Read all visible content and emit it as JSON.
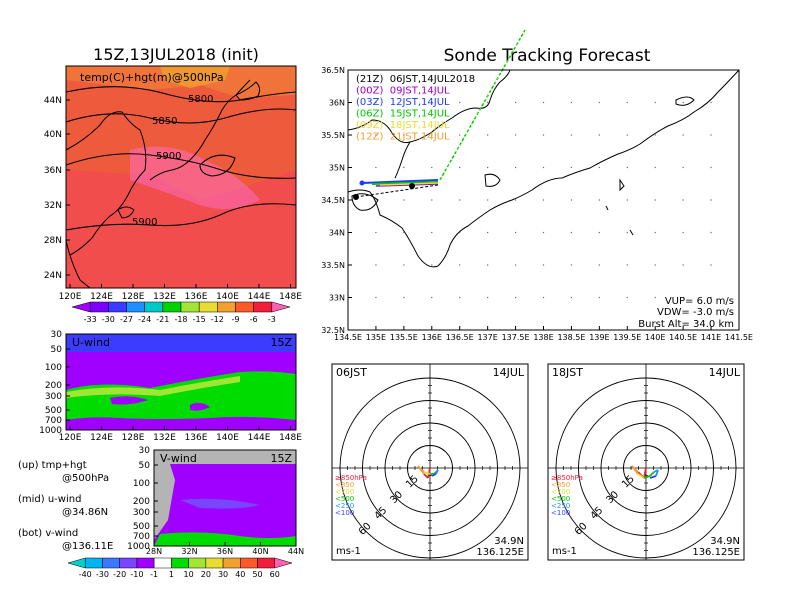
{
  "main_map": {
    "title": "15Z,13JUL2018 (init)",
    "subtitle": "temp(C)+hgt(m)@500hPa",
    "contour_labels": [
      "5800",
      "5850",
      "5900",
      "5900"
    ],
    "lat_ticks": [
      "44N",
      "40N",
      "36N",
      "32N",
      "28N",
      "24N"
    ],
    "lon_ticks": [
      "120E",
      "124E",
      "128E",
      "132E",
      "136E",
      "140E",
      "144E",
      "148E"
    ],
    "colorbar_ticks": [
      "-33",
      "-30",
      "-27",
      "-24",
      "-21",
      "-18",
      "-15",
      "-12",
      "-9",
      "-6",
      "-3"
    ],
    "colorbar_colors": [
      "#9f00ff",
      "#7d00ff",
      "#3b3bff",
      "#1e90ff",
      "#00c8c8",
      "#00d200",
      "#a0e632",
      "#e6dc32",
      "#f0a030",
      "#fa5a2a",
      "#f01e3c",
      "#ff5fb4"
    ]
  },
  "uwind": {
    "label": "U-wind",
    "time": "15Z",
    "p_ticks": [
      "30",
      "50",
      "100",
      "200",
      "300",
      "500",
      "700",
      "1000"
    ],
    "lon_ticks": [
      "120E",
      "124E",
      "128E",
      "132E",
      "136E",
      "140E",
      "144E",
      "148E"
    ]
  },
  "vwind": {
    "label": "V-wind",
    "time": "15Z",
    "p_ticks": [
      "30",
      "50",
      "100",
      "200",
      "300",
      "500",
      "700",
      "1000"
    ],
    "lat_ticks": [
      "28N",
      "32N",
      "36N",
      "40N",
      "44N"
    ]
  },
  "notes": {
    "up_1": "(up) tmp+hgt",
    "up_2": "@500hPa",
    "mid_1": "(mid) u-wind",
    "mid_2": "@34.86N",
    "bot_1": "(bot) v-wind",
    "bot_2": "@136.11E"
  },
  "wind_colorbar": {
    "ticks": [
      "-40",
      "-30",
      "-20",
      "-10",
      "-1",
      "1",
      "10",
      "20",
      "30",
      "40",
      "50",
      "60"
    ],
    "colors": [
      "#00d2c8",
      "#00b4f0",
      "#3c78ff",
      "#7846ff",
      "#a000ff",
      "#ffffff",
      "#00dc00",
      "#a0e632",
      "#e6dc32",
      "#f0a030",
      "#fa5a2a",
      "#f01e3c",
      "#ff5fb4"
    ]
  },
  "tracking": {
    "title": "Sonde Tracking Forecast",
    "lat_ticks": [
      "36.5N",
      "36N",
      "35.5N",
      "35N",
      "34.5N",
      "34N",
      "33.5N",
      "33N",
      "32.5N"
    ],
    "lon_ticks": [
      "134.5E",
      "135E",
      "135.5E",
      "136E",
      "136.5E",
      "137E",
      "137.5E",
      "138E",
      "138.5E",
      "139E",
      "139.5E",
      "140E",
      "140.5E",
      "141E",
      "141.5E"
    ],
    "legend": [
      {
        "text": "(21Z)  06JST,14JUL2018",
        "color": "#000000"
      },
      {
        "text": "(00Z)  09JST,14JUL",
        "color": "#a000c8"
      },
      {
        "text": "(03Z)  12JST,14JUL",
        "color": "#1e3cff"
      },
      {
        "text": "(06Z)  15JST,14JUL",
        "color": "#00c800"
      },
      {
        "text": "(09Z)  18JST,14JUL",
        "color": "#e6dc32"
      },
      {
        "text": "(12Z)  21JST,14JUL",
        "color": "#f0a030"
      }
    ],
    "params": [
      "VUP=  6.0 m/s",
      "VDW= -3.0 m/s",
      "Burst Alt= 34.0 km"
    ]
  },
  "hodo_left": {
    "time": "06JST",
    "date": "14JUL",
    "ring_labels": [
      "15",
      "30",
      "45",
      "60"
    ],
    "level_legend": [
      "≥850hPa",
      "<850",
      "<700",
      "<500",
      "<250",
      "<100"
    ],
    "level_colors": [
      "#f01e3c",
      "#f0a030",
      "#e6dc32",
      "#00c800",
      "#1e90ff",
      "#3c3cff"
    ],
    "unit": "ms-1",
    "lat": "34.9N",
    "lon": "136.125E"
  },
  "hodo_right": {
    "time": "18JST",
    "date": "14JUL",
    "ring_labels": [
      "15",
      "30",
      "45",
      "60"
    ],
    "level_legend": [
      "≥850hPa",
      "<850",
      "<700",
      "<500",
      "<250",
      "<100"
    ],
    "level_colors": [
      "#f01e3c",
      "#f0a030",
      "#e6dc32",
      "#00c800",
      "#1e90ff",
      "#3c3cff"
    ],
    "unit": "ms-1",
    "lat": "34.9N",
    "lon": "136.125E"
  }
}
